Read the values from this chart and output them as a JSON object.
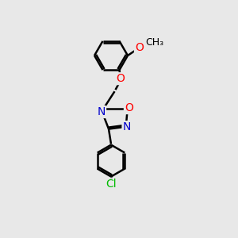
{
  "bg_color": "#e8e8e8",
  "bond_color": "#000000",
  "bond_width": 1.8,
  "atom_colors": {
    "O": "#ff0000",
    "N": "#0000cc",
    "Cl": "#00bb00",
    "C": "#000000"
  },
  "font_size_atom": 10,
  "font_size_methyl": 9,
  "xlim": [
    0,
    10
  ],
  "ylim": [
    0,
    15
  ]
}
